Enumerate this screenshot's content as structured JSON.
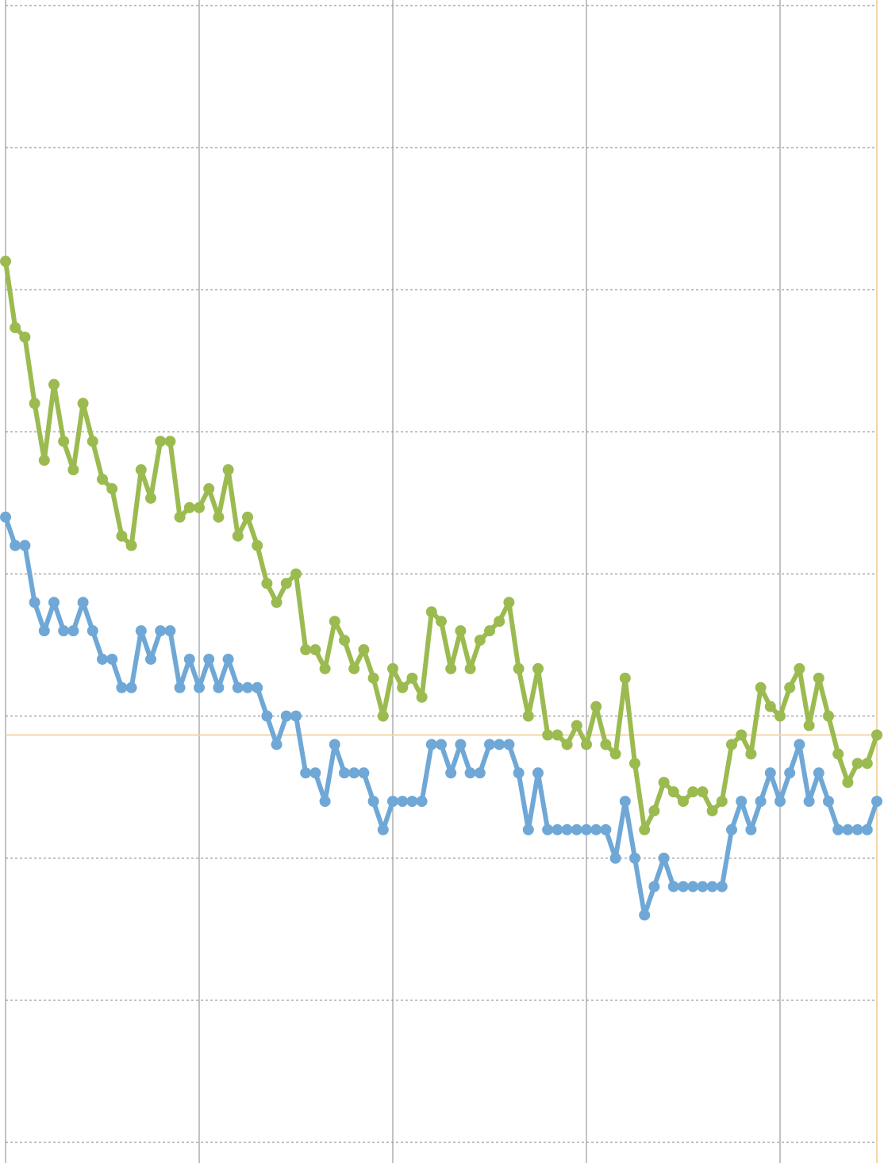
{
  "chart_data": {
    "type": "line",
    "x": [
      0,
      1,
      2,
      3,
      4,
      5,
      6,
      7,
      8,
      9,
      10,
      11,
      12,
      13,
      14,
      15,
      16,
      17,
      18,
      19,
      20,
      21,
      22,
      23,
      24,
      25,
      26,
      27,
      28,
      29,
      30,
      31,
      32,
      33,
      34,
      35,
      36,
      37,
      38,
      39,
      40,
      41,
      42,
      43,
      44,
      45,
      46,
      47,
      48,
      49,
      50,
      51,
      52,
      53,
      54,
      55,
      56,
      57,
      58,
      59,
      60,
      61,
      62,
      63,
      64,
      65,
      66,
      67,
      68,
      69,
      70,
      71,
      72,
      73,
      74,
      75,
      76,
      77,
      78,
      79,
      80,
      81,
      82,
      83,
      84,
      85,
      86,
      87,
      88,
      89,
      90
    ],
    "series": [
      {
        "color": "#9bbb50",
        "values": [
          93,
          86,
          85,
          78,
          72,
          80,
          74,
          71,
          78,
          74,
          70,
          69,
          64,
          63,
          71,
          68,
          74,
          74,
          66,
          67,
          67,
          69,
          66,
          71,
          64,
          66,
          63,
          59,
          57,
          59,
          60,
          52,
          52,
          50,
          55,
          53,
          50,
          52,
          49,
          45,
          50,
          48,
          49,
          47,
          56,
          55,
          50,
          54,
          50,
          53,
          54,
          55,
          57,
          50,
          45,
          50,
          43,
          43,
          42,
          44,
          42,
          46,
          42,
          41,
          49,
          40,
          33,
          35,
          38,
          37,
          36,
          37,
          37,
          35,
          36,
          42,
          43,
          41,
          48,
          46,
          45,
          48,
          50,
          44,
          49,
          45,
          41,
          38,
          40,
          40,
          43
        ]
      },
      {
        "color": "#6fa8d6",
        "values": [
          66,
          63,
          63,
          57,
          54,
          57,
          54,
          54,
          57,
          54,
          51,
          51,
          48,
          48,
          54,
          51,
          54,
          54,
          48,
          51,
          48,
          51,
          48,
          51,
          48,
          48,
          48,
          45,
          42,
          45,
          45,
          39,
          39,
          36,
          42,
          39,
          39,
          39,
          36,
          33,
          36,
          36,
          36,
          36,
          42,
          42,
          39,
          42,
          39,
          39,
          42,
          42,
          42,
          39,
          33,
          39,
          33,
          33,
          33,
          33,
          33,
          33,
          33,
          30,
          36,
          30,
          24,
          27,
          30,
          27,
          27,
          27,
          27,
          27,
          27,
          33,
          36,
          33,
          36,
          39,
          36,
          39,
          42,
          36,
          39,
          36,
          33,
          33,
          33,
          33,
          36
        ]
      }
    ],
    "xlim": [
      0,
      90
    ],
    "xticks": [
      0,
      20,
      40,
      60,
      80
    ],
    "ylim": [
      0,
      120
    ],
    "yticks": [
      0,
      15,
      30,
      45,
      60,
      75,
      90,
      105,
      120
    ],
    "grid": true,
    "reference_y": 43,
    "reference_color": "#f5d5a8"
  }
}
